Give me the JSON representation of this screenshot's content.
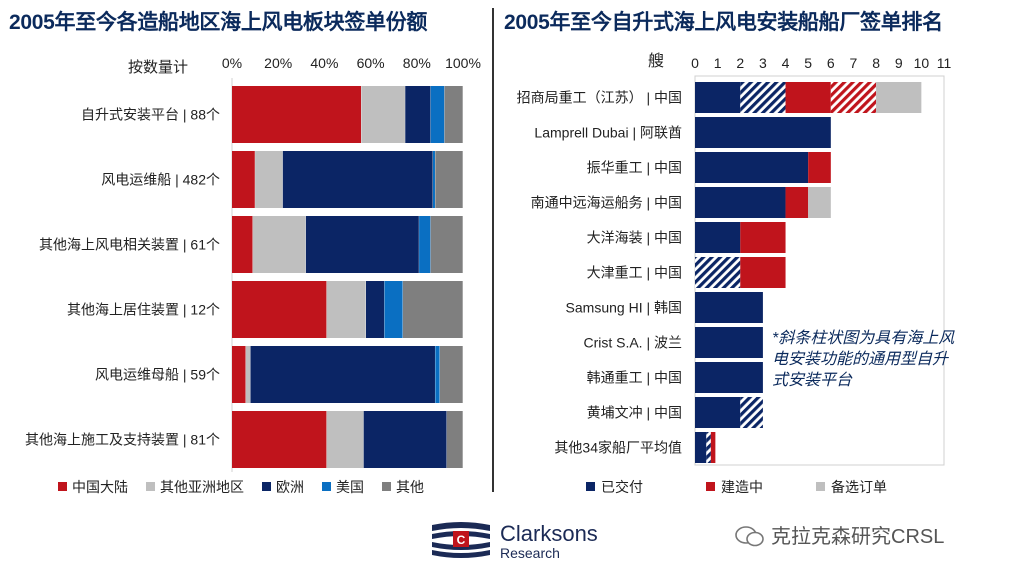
{
  "titles": {
    "left": "2005年至今各造船地区海上风电板块签单份额",
    "right": "2005年至今自升式海上风电安装船船厂签单排名"
  },
  "note": "*斜条柱状图为具有海上风电安装功能的通用型自升式安装平台",
  "logo": {
    "name": "Clarksons",
    "sub": "Research"
  },
  "watermark": "克拉克森研究CRSL",
  "colors": {
    "china": "#c0141c",
    "asia": "#bfbfbf",
    "europe": "#0b2565",
    "us": "#0a6fc2",
    "other": "#7f7f7f",
    "navy": "#0b2565"
  },
  "chart_data": [
    {
      "type": "bar",
      "orientation": "horizontal",
      "stacked": true,
      "percent": true,
      "title": "2005年至今各造船地区海上风电板块签单份额",
      "xlabel": "按数量计",
      "xlim": [
        0,
        100
      ],
      "xticks": [
        "0%",
        "20%",
        "40%",
        "60%",
        "80%",
        "100%"
      ],
      "categories": [
        "自升式安装平台 | 88个",
        "风电运维船 | 482个",
        "其他海上风电相关装置 | 61个",
        "其他海上居住装置 | 12个",
        "风电运维母船 | 59个",
        "其他海上施工及支持装置 | 81个"
      ],
      "series": [
        {
          "name": "中国大陆",
          "color": "#c0141c",
          "values": [
            56,
            10,
            9,
            41,
            6,
            41
          ]
        },
        {
          "name": "其他亚洲地区",
          "color": "#bfbfbf",
          "values": [
            19,
            12,
            23,
            17,
            2,
            16
          ]
        },
        {
          "name": "欧洲",
          "color": "#0b2565",
          "values": [
            11,
            65,
            49,
            8,
            80,
            36
          ]
        },
        {
          "name": "美国",
          "color": "#0a6fc2",
          "values": [
            6,
            1,
            5,
            8,
            2,
            0
          ]
        },
        {
          "name": "其他",
          "color": "#7f7f7f",
          "values": [
            8,
            12,
            14,
            26,
            10,
            7
          ]
        }
      ],
      "legend": "bottom"
    },
    {
      "type": "bar",
      "orientation": "horizontal",
      "stacked": true,
      "title": "2005年至今自升式海上风电安装船船厂签单排名",
      "xlabel": "艘",
      "xlim": [
        0,
        11
      ],
      "xticks": [
        "0",
        "1",
        "2",
        "3",
        "4",
        "5",
        "6",
        "7",
        "8",
        "9",
        "10",
        "11"
      ],
      "categories": [
        "招商局重工（江苏） | 中国",
        "Lamprell Dubai | 阿联酋",
        "振华重工 | 中国",
        "南通中远海运船务 | 中国",
        "大洋海装 | 中国",
        "大津重工 | 中国",
        "Samsung HI | 韩国",
        "Crist S.A. | 波兰",
        "韩通重工 | 中国",
        "黄埔文冲 | 中国",
        "其他34家船厂平均值"
      ],
      "series": [
        {
          "name": "已交付",
          "color": "#0b2565",
          "values": [
            2,
            6,
            5,
            4,
            2,
            0,
            3,
            3,
            3,
            2,
            0.5
          ]
        },
        {
          "name": "已交付（通用型）",
          "color": "#0b2565",
          "hatched": true,
          "values": [
            2,
            0,
            0,
            0,
            0,
            2,
            0,
            0,
            0,
            1,
            0.2
          ]
        },
        {
          "name": "建造中",
          "color": "#c0141c",
          "values": [
            2,
            0,
            1,
            1,
            2,
            2,
            0,
            0,
            0,
            0,
            0.2
          ]
        },
        {
          "name": "建造中（通用型）",
          "color": "#c0141c",
          "hatched": true,
          "values": [
            2,
            0,
            0,
            0,
            0,
            0,
            0,
            0,
            0,
            0,
            0
          ]
        },
        {
          "name": "备选订单",
          "color": "#bfbfbf",
          "values": [
            2,
            0,
            0,
            1,
            0,
            0,
            0,
            0,
            0,
            0,
            0
          ]
        }
      ],
      "legend_entries": [
        "已交付",
        "建造中",
        "备选订单"
      ],
      "legend": "bottom",
      "annotation": "*斜条柱状图为具有海上风电安装功能的通用型自升式安装平台"
    }
  ]
}
